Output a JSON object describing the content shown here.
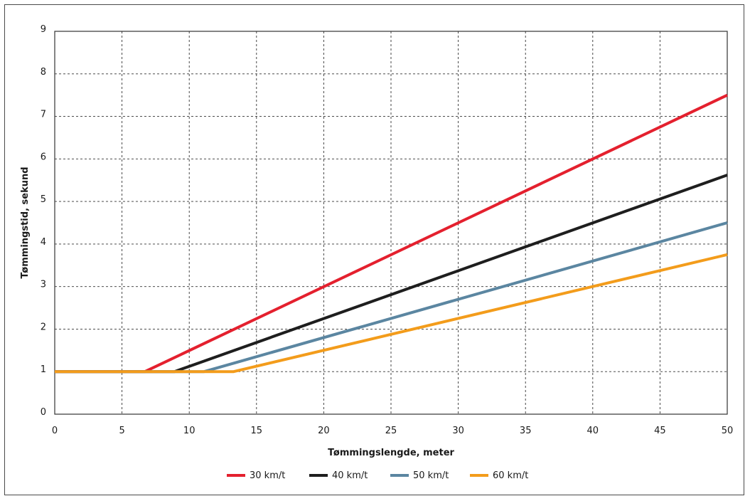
{
  "chart_data": {
    "type": "line",
    "title": "",
    "xlabel": "Tømmingslengde, meter",
    "ylabel": "Tømmingstid, sekund",
    "xlim": [
      0,
      50
    ],
    "ylim": [
      0,
      9
    ],
    "xticks": [
      "0",
      "5",
      "10",
      "15",
      "20",
      "25",
      "30",
      "35",
      "40",
      "45",
      "50"
    ],
    "yticks": [
      "0",
      "1",
      "2",
      "3",
      "4",
      "5",
      "6",
      "7",
      "8",
      "9"
    ],
    "grid": true,
    "legend_position": "bottom",
    "series": [
      {
        "name": "30 km/t",
        "color": "#e4202e",
        "x": [
          0,
          6.7,
          50
        ],
        "y": [
          1,
          1,
          7.5
        ]
      },
      {
        "name": "40 km/t",
        "color": "#1e1e1e",
        "x": [
          0,
          8.9,
          50
        ],
        "y": [
          1,
          1,
          5.62
        ]
      },
      {
        "name": "50 km/t",
        "color": "#5b86a1",
        "x": [
          0,
          11.1,
          50
        ],
        "y": [
          1,
          1,
          4.5
        ]
      },
      {
        "name": "60 km/t",
        "color": "#f39c1b",
        "x": [
          0,
          13.3,
          50
        ],
        "y": [
          1,
          1,
          3.75
        ]
      }
    ]
  }
}
